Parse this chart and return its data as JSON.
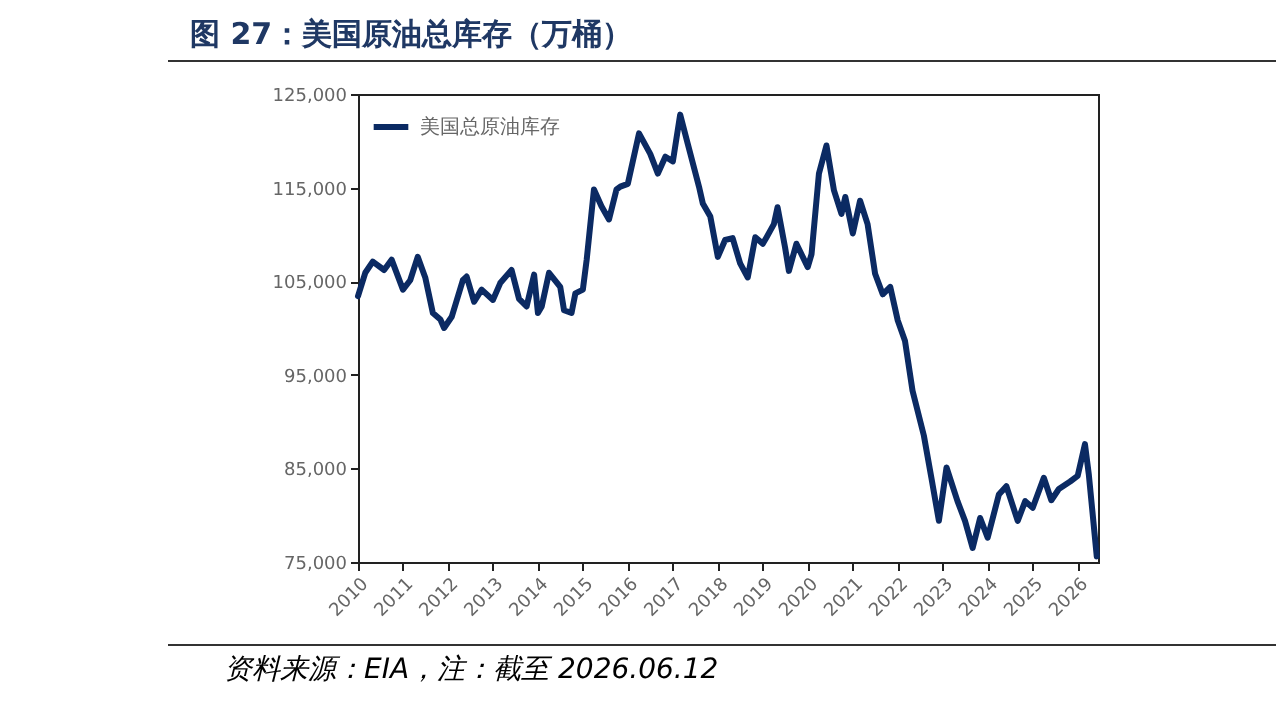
{
  "chart_data": {
    "type": "line",
    "title": "图 27：美国原油总库存（万桶）",
    "annotations": [
      "资料来源：EIA，注：截至 2026.06.12"
    ],
    "x": [
      "2010-01",
      "2010-03",
      "2010-05",
      "2010-08",
      "2010-10",
      "2011-01",
      "2011-03",
      "2011-05",
      "2011-07",
      "2011-09",
      "2011-11",
      "2011-12",
      "2012-02",
      "2012-05",
      "2012-06",
      "2012-08",
      "2012-10",
      "2013-01",
      "2013-03",
      "2013-06",
      "2013-08",
      "2013-10",
      "2013-12",
      "2014-01",
      "2014-02",
      "2014-04",
      "2014-07",
      "2014-08",
      "2014-10",
      "2014-11",
      "2015-01",
      "2015-02",
      "2015-04",
      "2015-06",
      "2015-08",
      "2015-10",
      "2015-11",
      "2016-01",
      "2016-04",
      "2016-07",
      "2016-09",
      "2016-11",
      "2017-01",
      "2017-03",
      "2017-05",
      "2017-08",
      "2017-09",
      "2017-11",
      "2018-01",
      "2018-03",
      "2018-05",
      "2018-07",
      "2018-09",
      "2018-11",
      "2019-01",
      "2019-02",
      "2019-04",
      "2019-05",
      "2019-07",
      "2019-08",
      "2019-10",
      "2020-01",
      "2020-02",
      "2020-04",
      "2020-06",
      "2020-08",
      "2020-10",
      "2020-11",
      "2021-01",
      "2021-03",
      "2021-05",
      "2021-07",
      "2021-09",
      "2021-11",
      "2022-01",
      "2022-03",
      "2022-05",
      "2022-08",
      "2022-10",
      "2022-12",
      "2023-02",
      "2023-05",
      "2023-07",
      "2023-09",
      "2023-11",
      "2024-01",
      "2024-04",
      "2024-06",
      "2024-09",
      "2024-11",
      "2025-01",
      "2025-04",
      "2025-06",
      "2025-08",
      "2025-11",
      "2026-01",
      "2026-03",
      "2026-04",
      "2026-06-05"
    ],
    "series": [
      {
        "name": "美国总原油库存",
        "color": "#0b2a63",
        "values": [
          103400,
          105900,
          107100,
          106200,
          107300,
          104100,
          105100,
          107600,
          105400,
          101600,
          100900,
          100000,
          101200,
          105100,
          105500,
          102800,
          104100,
          103000,
          104800,
          106200,
          103100,
          102300,
          105700,
          101600,
          102300,
          105900,
          104400,
          101900,
          101600,
          103700,
          104100,
          107300,
          114800,
          113000,
          111600,
          114800,
          115100,
          115400,
          120800,
          118600,
          116500,
          118300,
          117800,
          122800,
          119700,
          115100,
          113300,
          111900,
          107600,
          109400,
          109600,
          106900,
          105400,
          109700,
          109000,
          109700,
          111100,
          112900,
          108600,
          106100,
          109000,
          106500,
          107900,
          116500,
          119500,
          114700,
          112200,
          114000,
          110100,
          113600,
          111100,
          105800,
          103600,
          104400,
          100800,
          98600,
          93300,
          88500,
          84000,
          79400,
          85100,
          81500,
          79400,
          76500,
          79700,
          77600,
          82200,
          83100,
          79400,
          81500,
          80800,
          84000,
          81600,
          82800,
          83600,
          84200,
          87600,
          84400,
          75600
        ]
      }
    ],
    "xlim": [
      "2010-01-01",
      "2026-06-15"
    ],
    "xticks": [
      "2010",
      "2011",
      "2012",
      "2013",
      "2014",
      "2015",
      "2016",
      "2017",
      "2018",
      "2019",
      "2020",
      "2021",
      "2022",
      "2023",
      "2024",
      "2025",
      "2026"
    ],
    "ylim": [
      75000,
      125000
    ],
    "yticks": [
      {
        "value": 75000,
        "label": "75,000"
      },
      {
        "value": 85000,
        "label": "85,000"
      },
      {
        "value": 95000,
        "label": "95,000"
      },
      {
        "value": 105000,
        "label": "105,000"
      },
      {
        "value": 115000,
        "label": "115,000"
      },
      {
        "value": 125000,
        "label": "125,000"
      }
    ],
    "grid": false,
    "legend": "top left"
  }
}
